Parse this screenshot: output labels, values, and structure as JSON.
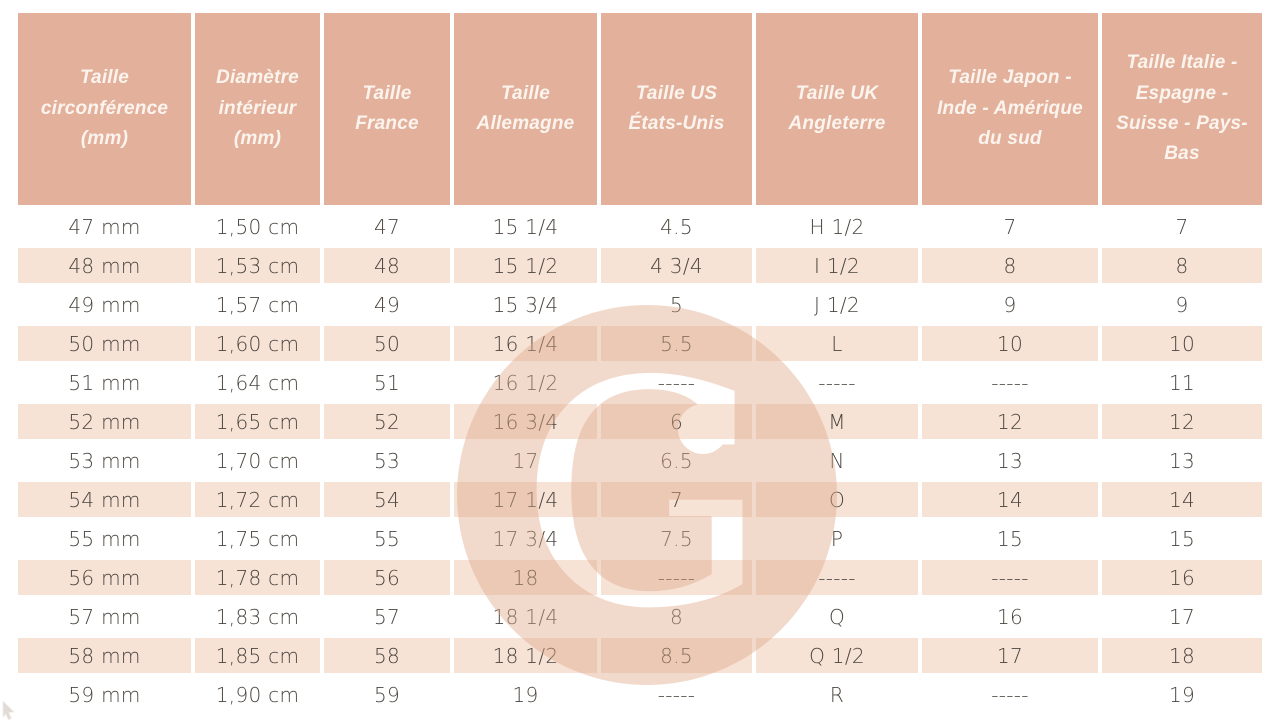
{
  "table": {
    "headers": [
      "Taille circonférence (mm)",
      "Diamètre intérieur (mm)",
      "Taille France",
      "Taille Allemagne",
      "Taille US États-Unis",
      "Taille UK Angleterre",
      "Taille Japon - Inde - Amérique du sud",
      "Taille Italie - Espagne - Suisse - Pays-Bas"
    ],
    "rows": [
      [
        "47 mm",
        "1,50 cm",
        "47",
        "15 1/4",
        "4.5",
        "H 1/2",
        "7",
        "7"
      ],
      [
        "48 mm",
        "1,53 cm",
        "48",
        "15 1/2",
        "4 3/4",
        "I 1/2",
        "8",
        "8"
      ],
      [
        "49 mm",
        "1,57 cm",
        "49",
        "15 3/4",
        "5",
        "J 1/2",
        "9",
        "9"
      ],
      [
        "50 mm",
        "1,60 cm",
        "50",
        "16 1/4",
        "5.5",
        "L",
        "10",
        "10"
      ],
      [
        "51 mm",
        "1,64 cm",
        "51",
        "16 1/2",
        "-----",
        "-----",
        "-----",
        "11"
      ],
      [
        "52 mm",
        "1,65 cm",
        "52",
        "16 3/4",
        "6",
        "M",
        "12",
        "12"
      ],
      [
        "53 mm",
        "1,70 cm",
        "53",
        "17",
        "6.5",
        "N",
        "13",
        "13"
      ],
      [
        "54 mm",
        "1,72 cm",
        "54",
        "17 1/4",
        "7",
        "O",
        "14",
        "14"
      ],
      [
        "55 mm",
        "1,75 cm",
        "55",
        "17 3/4",
        "7.5",
        "P",
        "15",
        "15"
      ],
      [
        "56 mm",
        "1,78 cm",
        "56",
        "18",
        "-----",
        "-----",
        "-----",
        "16"
      ],
      [
        "57 mm",
        "1,83 cm",
        "57",
        "18 1/4",
        "8",
        "Q",
        "16",
        "17"
      ],
      [
        "58 mm",
        "1,85 cm",
        "58",
        "18 1/2",
        "8.5",
        "Q 1/2",
        "17",
        "18"
      ],
      [
        "59 mm",
        "1,90 cm",
        "59",
        "19",
        "-----",
        "R",
        "-----",
        "19"
      ]
    ]
  },
  "watermark": {
    "letter": "G"
  },
  "colors": {
    "header_bg": "#e3b19b",
    "header_text": "#fbf4ee",
    "row_alt_bg": "#f7e2d6",
    "cell_text": "#4a453f",
    "watermark": "#dfa988"
  }
}
